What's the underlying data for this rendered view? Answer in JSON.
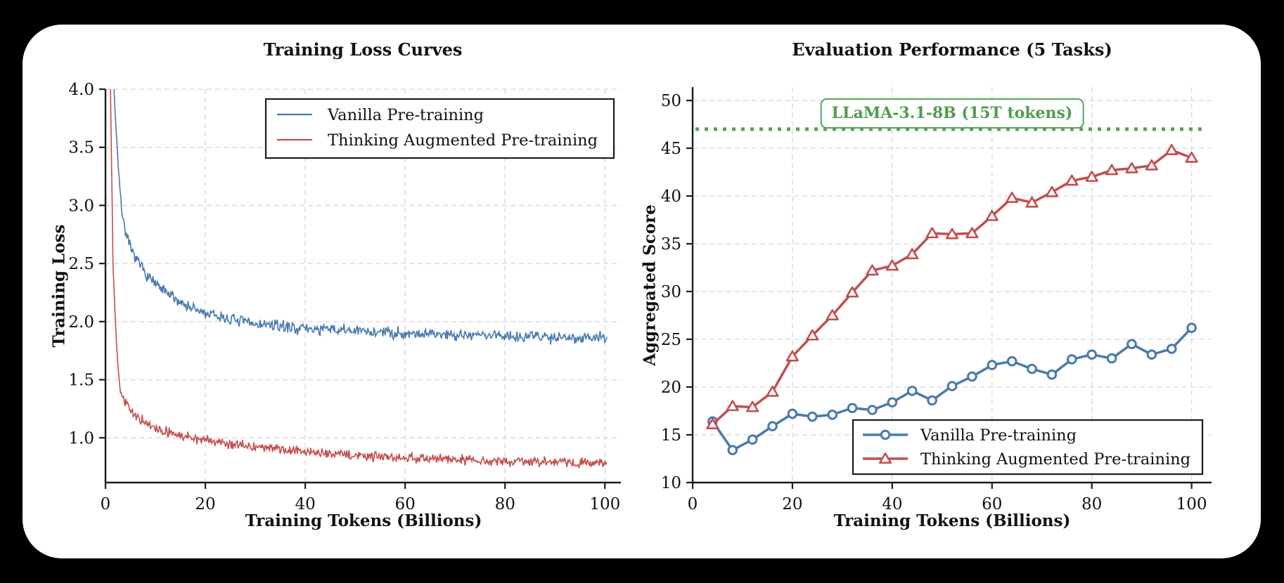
{
  "page": {
    "outer_background": "#000000",
    "card_background": "#ffffff",
    "text_color": "#111111",
    "grid_color": "#d6d6d6",
    "spine_color": "#1b1b1b"
  },
  "chart_data": [
    {
      "type": "line",
      "title": "Training Loss Curves",
      "xlabel": "Training Tokens (Billions)",
      "ylabel": "Training Loss",
      "xlim": [
        0,
        103.2
      ],
      "ylim": [
        0.615,
        4.0
      ],
      "xticks": [
        0,
        20,
        40,
        60,
        80,
        100
      ],
      "yticks": [
        1.0,
        1.5,
        2.0,
        2.5,
        3.0,
        3.5,
        4.0
      ],
      "grid": true,
      "legend_position": "upper-right",
      "series": [
        {
          "name": "Vanilla Pre-training",
          "color": "#4879B0",
          "line_style": "noisy",
          "noise_amplitude": 0.05,
          "noise_seed": 7,
          "trend_points": [
            [
              1.4,
              4.3
            ],
            [
              2,
              3.75
            ],
            [
              2.5,
              3.4
            ],
            [
              3,
              3.05
            ],
            [
              3.5,
              2.9
            ],
            [
              4,
              2.78
            ],
            [
              5,
              2.62
            ],
            [
              6,
              2.55
            ],
            [
              7,
              2.48
            ],
            [
              8,
              2.42
            ],
            [
              10,
              2.32
            ],
            [
              12,
              2.25
            ],
            [
              15,
              2.17
            ],
            [
              18,
              2.1
            ],
            [
              20,
              2.07
            ],
            [
              25,
              2.02
            ],
            [
              30,
              1.98
            ],
            [
              35,
              1.96
            ],
            [
              40,
              1.94
            ],
            [
              45,
              1.93
            ],
            [
              50,
              1.92
            ],
            [
              60,
              1.9
            ],
            [
              70,
              1.89
            ],
            [
              80,
              1.88
            ],
            [
              90,
              1.87
            ],
            [
              100.5,
              1.86
            ]
          ]
        },
        {
          "name": "Thinking Augmented Pre-training",
          "color": "#C44E4E",
          "line_style": "noisy",
          "noise_amplitude": 0.04,
          "noise_seed": 13,
          "trend_points": [
            [
              0.9,
              4.35
            ],
            [
              1.5,
              2.5
            ],
            [
              2,
              2.0
            ],
            [
              2.5,
              1.62
            ],
            [
              3,
              1.42
            ],
            [
              3.5,
              1.35
            ],
            [
              4,
              1.3
            ],
            [
              5,
              1.24
            ],
            [
              6,
              1.19
            ],
            [
              8,
              1.12
            ],
            [
              10,
              1.08
            ],
            [
              12,
              1.05
            ],
            [
              15,
              1.02
            ],
            [
              20,
              0.98
            ],
            [
              25,
              0.95
            ],
            [
              30,
              0.92
            ],
            [
              35,
              0.9
            ],
            [
              40,
              0.88
            ],
            [
              45,
              0.865
            ],
            [
              50,
              0.85
            ],
            [
              60,
              0.83
            ],
            [
              70,
              0.815
            ],
            [
              80,
              0.8
            ],
            [
              90,
              0.79
            ],
            [
              100.5,
              0.78
            ]
          ]
        }
      ]
    },
    {
      "type": "line",
      "title": "Evaluation Performance (5 Tasks)",
      "xlabel": "Training Tokens (Billions)",
      "ylabel": "Aggregated Score",
      "xlim": [
        0,
        104
      ],
      "ylim": [
        10,
        51.4
      ],
      "xticks": [
        0,
        20,
        40,
        60,
        80,
        100
      ],
      "yticks": [
        10,
        15,
        20,
        25,
        30,
        35,
        40,
        45,
        50
      ],
      "grid": true,
      "legend_position": "lower-right",
      "x": [
        4,
        8,
        12,
        16,
        20,
        24,
        28,
        32,
        36,
        40,
        44,
        48,
        52,
        56,
        60,
        64,
        68,
        72,
        76,
        80,
        84,
        88,
        92,
        96,
        100
      ],
      "series": [
        {
          "name": "Vanilla Pre-training",
          "color": "#4879B0",
          "marker": "circle",
          "values": [
            16.4,
            13.4,
            14.5,
            15.9,
            17.2,
            16.9,
            17.1,
            17.8,
            17.6,
            18.4,
            19.6,
            18.6,
            20.1,
            21.1,
            22.3,
            22.7,
            21.9,
            21.3,
            22.9,
            23.4,
            23.0,
            24.5,
            23.4,
            24.0,
            26.2
          ]
        },
        {
          "name": "Thinking Augmented Pre-training",
          "color": "#C44E4E",
          "marker": "triangle",
          "values": [
            16.1,
            18.0,
            17.9,
            19.5,
            23.2,
            25.4,
            27.5,
            29.9,
            32.2,
            32.7,
            33.9,
            36.1,
            36.0,
            36.1,
            37.9,
            39.8,
            39.3,
            40.4,
            41.6,
            42.0,
            42.7,
            42.9,
            43.2,
            44.8,
            44.0
          ]
        }
      ],
      "reference_line": {
        "label": "LLaMA-3.1-8B (15T tokens)",
        "value": 47.0,
        "color": "#55A455",
        "style": "dotted"
      }
    }
  ]
}
